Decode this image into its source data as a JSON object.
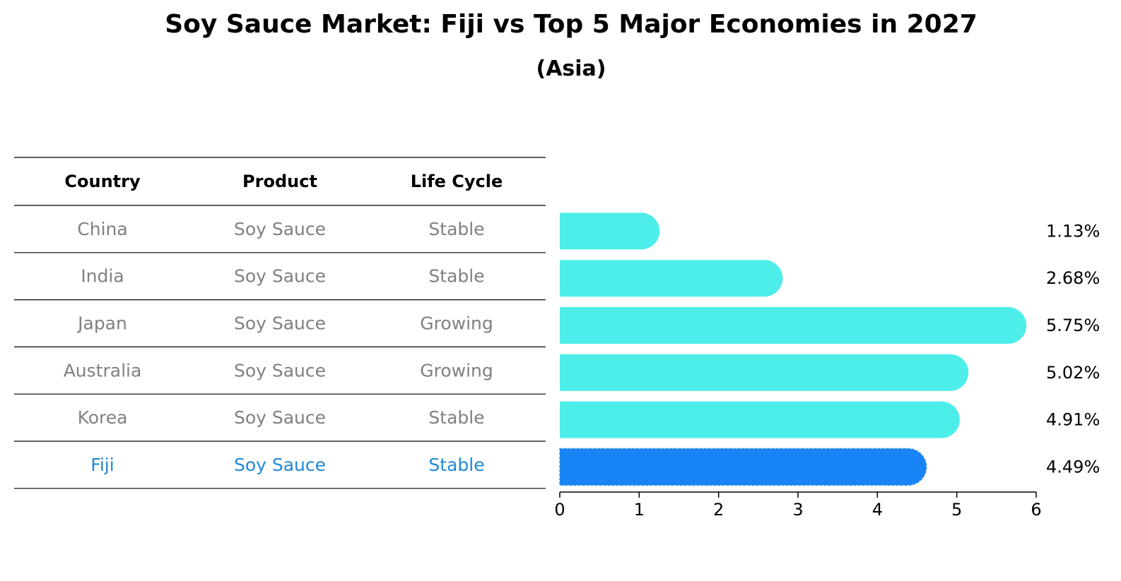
{
  "title": "Soy Sauce Market: Fiji vs Top 5 Major Economies in 2027",
  "subtitle": "(Asia)",
  "table": {
    "headers": [
      "Country",
      "Product",
      "Life Cycle"
    ],
    "rows": [
      {
        "country": "China",
        "product": "Soy Sauce",
        "life_cycle": "Stable",
        "highlight": false
      },
      {
        "country": "India",
        "product": "Soy Sauce",
        "life_cycle": "Stable",
        "highlight": false
      },
      {
        "country": "Japan",
        "product": "Soy Sauce",
        "life_cycle": "Growing",
        "highlight": false
      },
      {
        "country": "Australia",
        "product": "Soy Sauce",
        "life_cycle": "Growing",
        "highlight": false
      },
      {
        "country": "Korea",
        "product": "Soy Sauce",
        "life_cycle": "Stable",
        "highlight": false
      },
      {
        "country": "Fiji",
        "product": "Soy Sauce",
        "life_cycle": "Stable",
        "highlight": true
      }
    ]
  },
  "colors": {
    "bar": "#4deeea",
    "highlight_bar": "#1884f5",
    "highlight_text": "#1f88d6",
    "muted_text": "#808080",
    "text": "#000000"
  },
  "chart_data": {
    "type": "bar",
    "orientation": "horizontal",
    "categories": [
      "China",
      "India",
      "Japan",
      "Australia",
      "Korea",
      "Fiji"
    ],
    "values": [
      1.13,
      2.68,
      5.75,
      5.02,
      4.91,
      4.49
    ],
    "data_labels": [
      "1.13%",
      "2.68%",
      "5.75%",
      "5.02%",
      "4.91%",
      "4.49%"
    ],
    "highlight": "Fiji",
    "xlim": [
      0,
      6
    ],
    "xticks": [
      "0",
      "1",
      "2",
      "3",
      "4",
      "5",
      "6"
    ],
    "xlabel": "",
    "ylabel": "",
    "grid": false
  }
}
